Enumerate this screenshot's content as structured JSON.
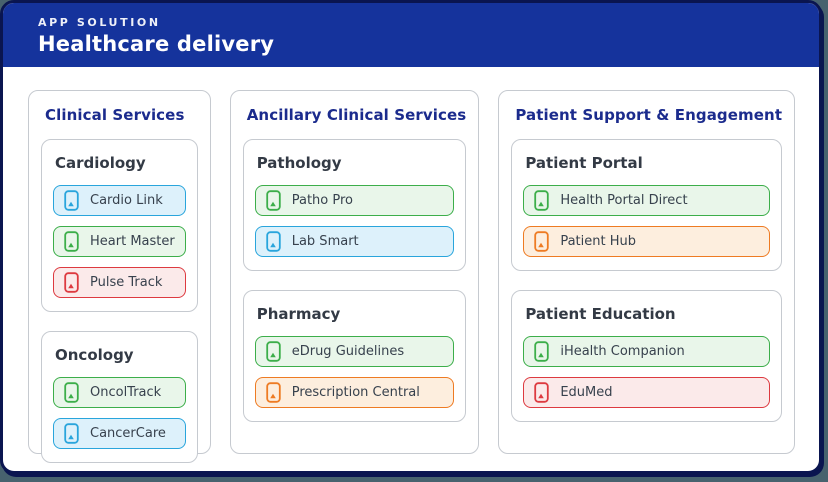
{
  "page": {
    "background_color": "#47626e",
    "slide_border_color": "#0a1550"
  },
  "header": {
    "eyebrow": "APP SOLUTION",
    "title": "Healthcare delivery",
    "bg_color": "#15339c",
    "text_color": "#ffffff"
  },
  "palette": {
    "blue": {
      "border": "#29a5dc",
      "bg": "#ddf1fb"
    },
    "green": {
      "border": "#3cae4a",
      "bg": "#e9f6ea"
    },
    "red": {
      "border": "#dd3a40",
      "bg": "#fbeaea"
    },
    "orange": {
      "border": "#ee7b23",
      "bg": "#fdeede"
    }
  },
  "columns": [
    {
      "title": "Clinical Services",
      "groups": [
        {
          "title": "Cardiology",
          "apps": [
            {
              "label": "Cardio Link",
              "color": "blue"
            },
            {
              "label": "Heart Master",
              "color": "green"
            },
            {
              "label": "Pulse Track",
              "color": "red"
            }
          ]
        },
        {
          "title": "Oncology",
          "apps": [
            {
              "label": "OncolTrack",
              "color": "green"
            },
            {
              "label": "CancerCare",
              "color": "blue"
            }
          ]
        }
      ]
    },
    {
      "title": "Ancillary Clinical Services",
      "groups": [
        {
          "title": "Pathology",
          "apps": [
            {
              "label": "Patho Pro",
              "color": "green"
            },
            {
              "label": "Lab Smart",
              "color": "blue"
            }
          ]
        },
        {
          "title": "Pharmacy",
          "apps": [
            {
              "label": "eDrug Guidelines",
              "color": "green"
            },
            {
              "label": "Prescription Central",
              "color": "orange"
            }
          ]
        }
      ]
    },
    {
      "title": "Patient Support & Engagement",
      "groups": [
        {
          "title": "Patient Portal",
          "apps": [
            {
              "label": "Health Portal Direct",
              "color": "green"
            },
            {
              "label": "Patient Hub",
              "color": "orange"
            }
          ]
        },
        {
          "title": "Patient Education",
          "apps": [
            {
              "label": "iHealth Companion",
              "color": "green"
            },
            {
              "label": "EduMed",
              "color": "red"
            }
          ]
        }
      ]
    }
  ],
  "icons": {
    "app_icon_name": "mobile-app-icon"
  }
}
